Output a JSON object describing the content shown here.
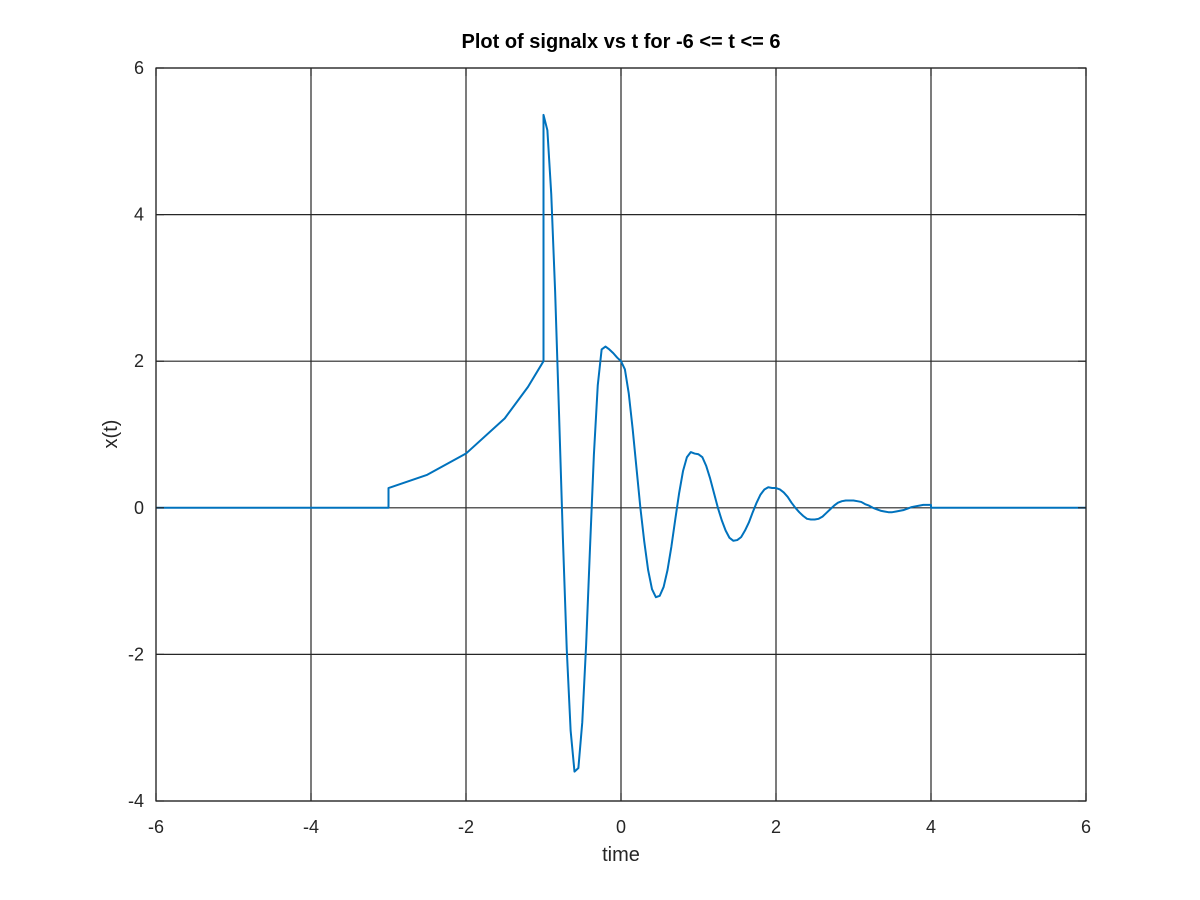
{
  "chart_data": {
    "type": "line",
    "title": "Plot of signalx vs t for -6 <= t <= 6",
    "xlabel": "time",
    "ylabel": "x(t)",
    "xlim": [
      -6,
      6
    ],
    "ylim": [
      -4,
      6
    ],
    "xticks": [
      -6,
      -4,
      -2,
      0,
      2,
      4,
      6
    ],
    "yticks": [
      -4,
      -2,
      0,
      2,
      4,
      6
    ],
    "xtick_labels": [
      "-6",
      "-4",
      "-2",
      "0",
      "2",
      "4",
      "6"
    ],
    "ytick_labels": [
      "-4",
      "-2",
      "0",
      "2",
      "4",
      "6"
    ],
    "grid": true,
    "series": [
      {
        "color": "#0072bd",
        "x": [
          -6,
          -3,
          -3,
          -2.5,
          -2,
          -1.5,
          -1.2,
          -1,
          -1,
          -0.95,
          -0.9,
          -0.85,
          -0.8,
          -0.75,
          -0.7,
          -0.65,
          -0.6,
          -0.55,
          -0.5,
          -0.45,
          -0.4,
          -0.35,
          -0.3,
          -0.25,
          -0.2,
          -0.15,
          -0.1,
          -0.05,
          0,
          0.05,
          0.1,
          0.15,
          0.2,
          0.25,
          0.3,
          0.35,
          0.4,
          0.45,
          0.5,
          0.55,
          0.6,
          0.65,
          0.7,
          0.75,
          0.8,
          0.85,
          0.9,
          0.95,
          1,
          1.05,
          1.1,
          1.15,
          1.2,
          1.25,
          1.3,
          1.35,
          1.4,
          1.45,
          1.5,
          1.55,
          1.6,
          1.65,
          1.7,
          1.75,
          1.8,
          1.85,
          1.9,
          1.95,
          2,
          2.05,
          2.1,
          2.15,
          2.2,
          2.25,
          2.3,
          2.35,
          2.4,
          2.45,
          2.5,
          2.55,
          2.6,
          2.65,
          2.7,
          2.75,
          2.8,
          2.85,
          2.9,
          2.95,
          3,
          3.05,
          3.1,
          3.15,
          3.2,
          3.25,
          3.3,
          3.35,
          3.4,
          3.45,
          3.5,
          3.55,
          3.6,
          3.65,
          3.7,
          3.75,
          3.8,
          3.85,
          3.9,
          3.95,
          4,
          4,
          6
        ],
        "y": [
          0,
          0,
          0.27,
          0.45,
          0.74,
          1.22,
          1.65,
          2.0,
          5.36,
          5.15,
          4.28,
          2.95,
          1.3,
          -0.41,
          -1.93,
          -3.04,
          -3.6,
          -3.55,
          -2.93,
          -1.87,
          -0.55,
          0.72,
          1.67,
          2.16,
          2.2,
          2.16,
          2.11,
          2.05,
          2.0,
          1.89,
          1.56,
          1.08,
          0.54,
          0.0,
          -0.46,
          -0.85,
          -1.11,
          -1.22,
          -1.2,
          -1.08,
          -0.85,
          -0.53,
          -0.16,
          0.2,
          0.5,
          0.69,
          0.76,
          0.74,
          0.73,
          0.69,
          0.57,
          0.4,
          0.2,
          0.0,
          -0.17,
          -0.31,
          -0.41,
          -0.45,
          -0.44,
          -0.4,
          -0.31,
          -0.2,
          -0.06,
          0.07,
          0.18,
          0.25,
          0.28,
          0.27,
          0.27,
          0.25,
          0.21,
          0.15,
          0.07,
          0.0,
          -0.06,
          -0.11,
          -0.15,
          -0.16,
          -0.16,
          -0.15,
          -0.12,
          -0.07,
          -0.02,
          0.03,
          0.07,
          0.09,
          0.1,
          0.1,
          0.1,
          0.09,
          0.08,
          0.05,
          0.03,
          0.0,
          -0.02,
          -0.04,
          -0.05,
          -0.06,
          -0.06,
          -0.05,
          -0.04,
          -0.03,
          -0.01,
          0.01,
          0.02,
          0.03,
          0.04,
          0.04,
          0.04,
          0,
          0
        ]
      }
    ]
  }
}
